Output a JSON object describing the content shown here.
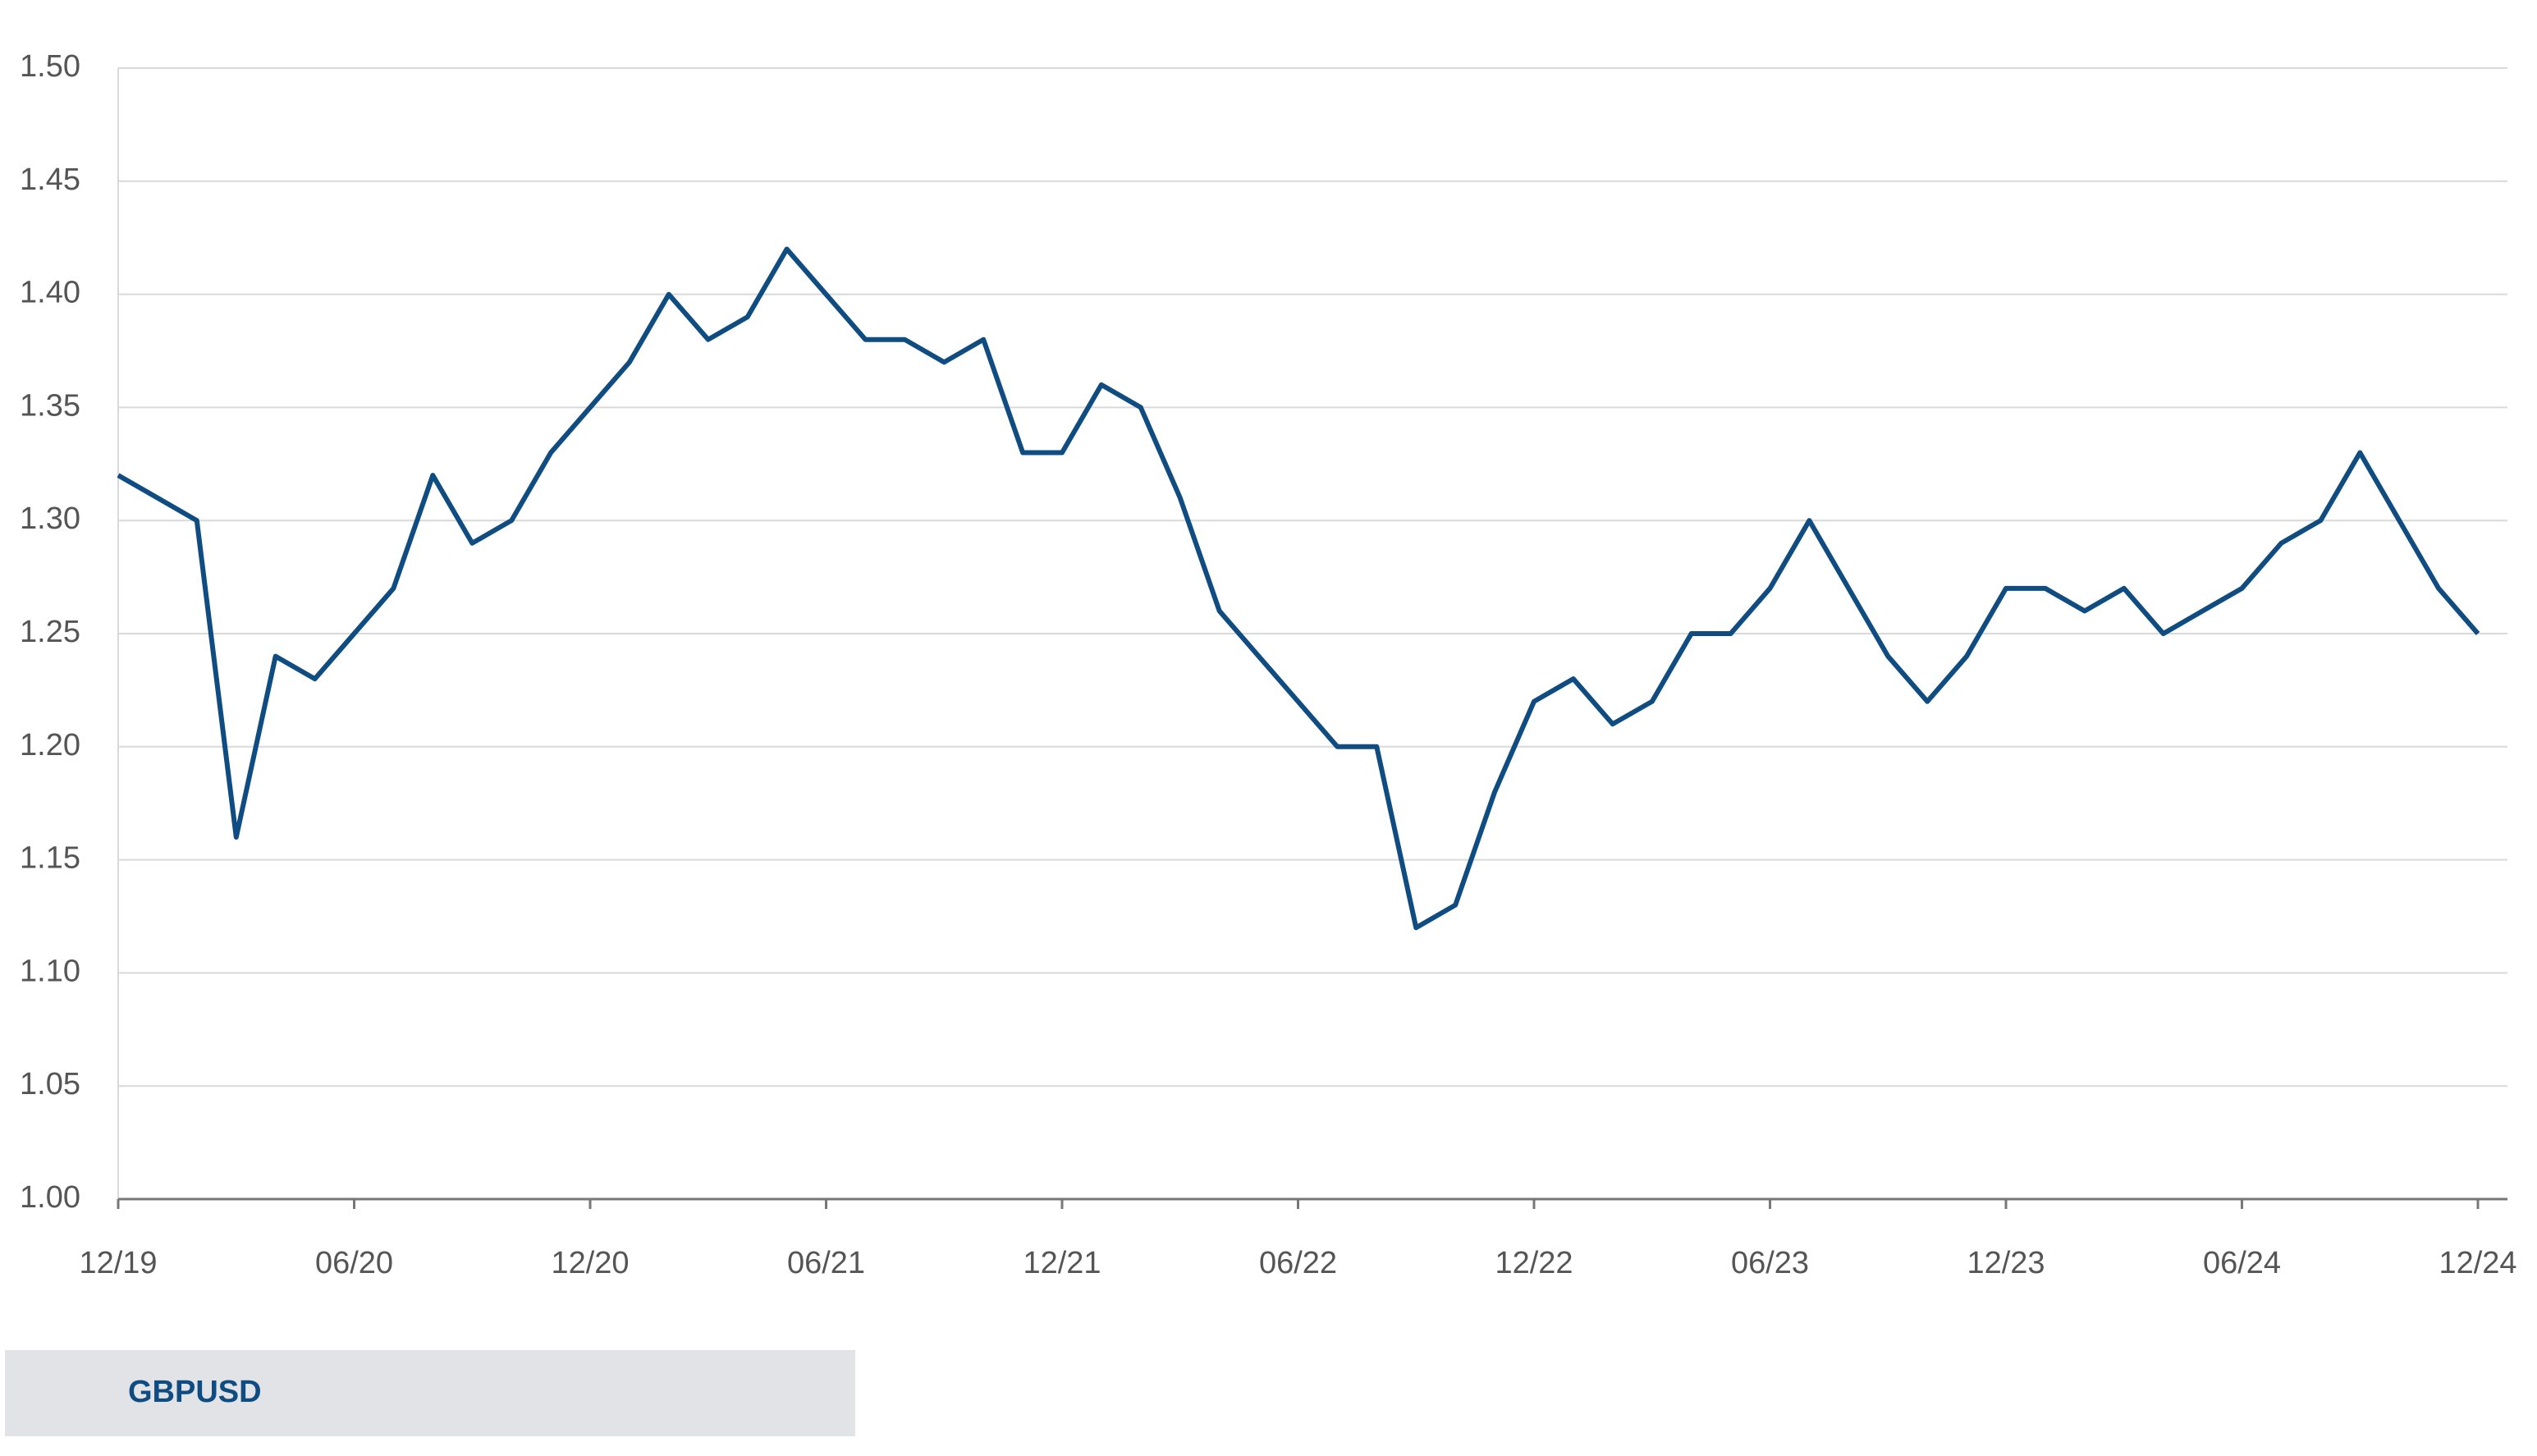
{
  "chart_data": {
    "type": "line",
    "x": [
      "12/19",
      "01/20",
      "02/20",
      "03/20",
      "04/20",
      "05/20",
      "06/20",
      "07/20",
      "08/20",
      "09/20",
      "10/20",
      "11/20",
      "12/20",
      "01/21",
      "02/21",
      "03/21",
      "04/21",
      "05/21",
      "06/21",
      "07/21",
      "08/21",
      "09/21",
      "10/21",
      "11/21",
      "12/21",
      "01/22",
      "02/22",
      "03/22",
      "04/22",
      "05/22",
      "06/22",
      "07/22",
      "08/22",
      "09/22",
      "10/22",
      "11/22",
      "12/22",
      "01/23",
      "02/23",
      "03/23",
      "04/23",
      "05/23",
      "06/23",
      "07/23",
      "08/23",
      "09/23",
      "10/23",
      "11/23",
      "12/23",
      "01/24",
      "02/24",
      "03/24",
      "04/24",
      "05/24",
      "06/24",
      "07/24",
      "08/24",
      "09/24",
      "10/24",
      "11/24",
      "12/24"
    ],
    "series": [
      {
        "name": "GBPUSD",
        "color": "#0f4c81",
        "values": [
          1.32,
          1.31,
          1.3,
          1.16,
          1.24,
          1.23,
          1.25,
          1.27,
          1.32,
          1.29,
          1.3,
          1.33,
          1.35,
          1.37,
          1.4,
          1.38,
          1.39,
          1.42,
          1.4,
          1.38,
          1.38,
          1.37,
          1.38,
          1.33,
          1.33,
          1.36,
          1.35,
          1.31,
          1.26,
          1.24,
          1.22,
          1.2,
          1.2,
          1.12,
          1.13,
          1.18,
          1.22,
          1.23,
          1.21,
          1.22,
          1.25,
          1.25,
          1.27,
          1.3,
          1.27,
          1.24,
          1.22,
          1.24,
          1.27,
          1.27,
          1.26,
          1.27,
          1.25,
          1.26,
          1.27,
          1.29,
          1.3,
          1.33,
          1.3,
          1.27,
          1.25
        ]
      }
    ],
    "xticks": [
      "12/19",
      "06/20",
      "12/20",
      "06/21",
      "12/21",
      "06/22",
      "12/22",
      "06/23",
      "12/23",
      "06/24",
      "12/24"
    ],
    "ylim": [
      1.0,
      1.5
    ],
    "yticks": [
      {
        "value": 1.0,
        "label": "1.00"
      },
      {
        "value": 1.05,
        "label": "1.05"
      },
      {
        "value": 1.1,
        "label": "1.10"
      },
      {
        "value": 1.15,
        "label": "1.15"
      },
      {
        "value": 1.2,
        "label": "1.20"
      },
      {
        "value": 1.25,
        "label": "1.25"
      },
      {
        "value": 1.3,
        "label": "1.30"
      },
      {
        "value": 1.35,
        "label": "1.35"
      },
      {
        "value": 1.4,
        "label": "1.40"
      },
      {
        "value": 1.45,
        "label": "1.45"
      },
      {
        "value": 1.5,
        "label": "1.50"
      }
    ],
    "grid": true
  }
}
